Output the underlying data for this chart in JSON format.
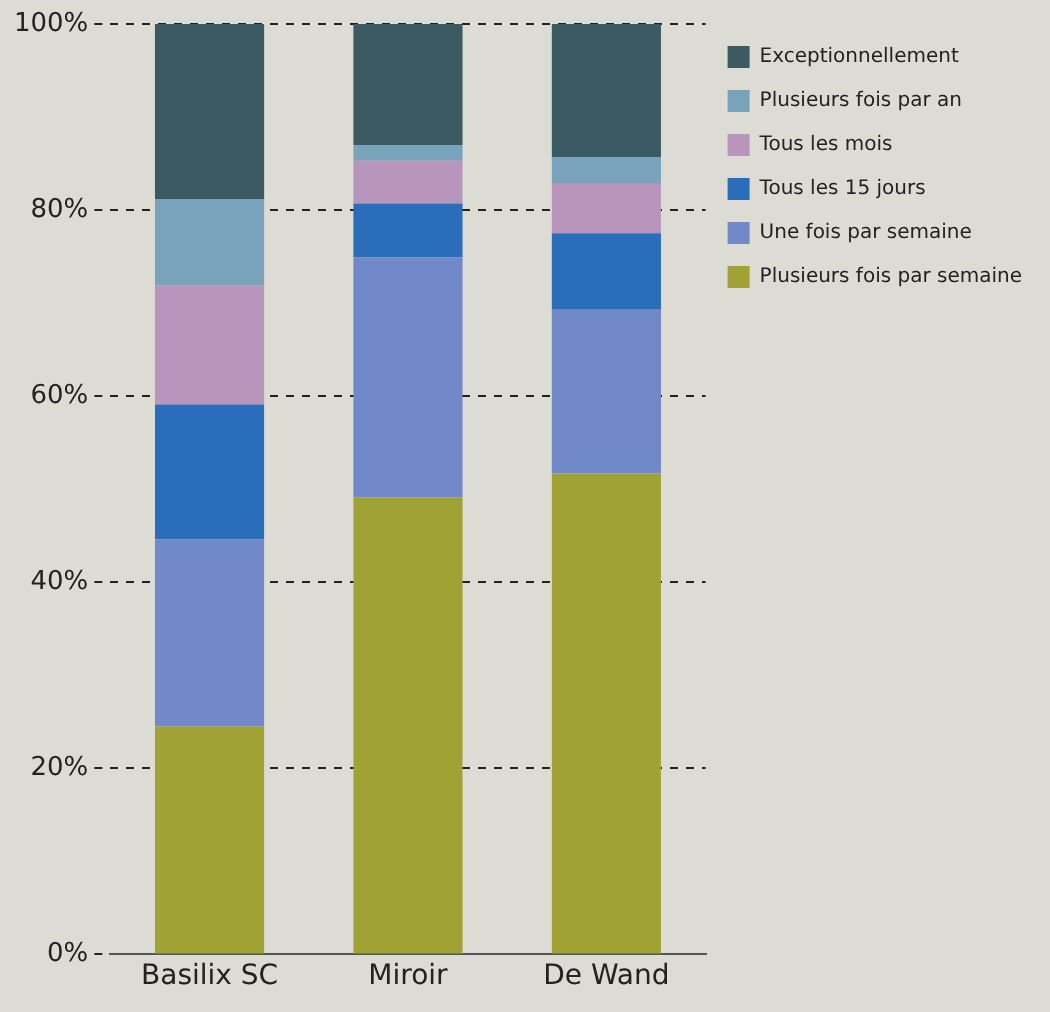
{
  "chart_data": {
    "type": "bar",
    "stacked": true,
    "categories": [
      "Basilix SC",
      "Miroir",
      "De Wand"
    ],
    "series": [
      {
        "name": "Plusieurs fois par semaine",
        "color": "#a0a236",
        "values": [
          24.5,
          49.1,
          51.7
        ]
      },
      {
        "name": "Une fois par semaine",
        "color": "#7289c9",
        "values": [
          20.1,
          25.8,
          17.6
        ]
      },
      {
        "name": "Tous les 15 jours",
        "color": "#2a6ebb",
        "values": [
          14.5,
          5.8,
          8.2
        ]
      },
      {
        "name": "Tous les mois",
        "color": "#b895ba",
        "values": [
          12.8,
          4.6,
          5.4
        ]
      },
      {
        "name": "Plusieurs fois par an",
        "color": "#79a3bb",
        "values": [
          9.3,
          1.7,
          2.8
        ]
      },
      {
        "name": "Exceptionnellement",
        "color": "#3b5a62",
        "values": [
          18.8,
          13.0,
          14.3
        ]
      }
    ],
    "ylim": [
      0,
      100
    ],
    "yticks": [
      {
        "value": 0,
        "label": "0%"
      },
      {
        "value": 20,
        "label": "20%"
      },
      {
        "value": 40,
        "label": "40%"
      },
      {
        "value": 60,
        "label": "60%"
      },
      {
        "value": 80,
        "label": "80%"
      },
      {
        "value": 100,
        "label": "100%"
      }
    ],
    "grid": "y",
    "legend": "right"
  }
}
